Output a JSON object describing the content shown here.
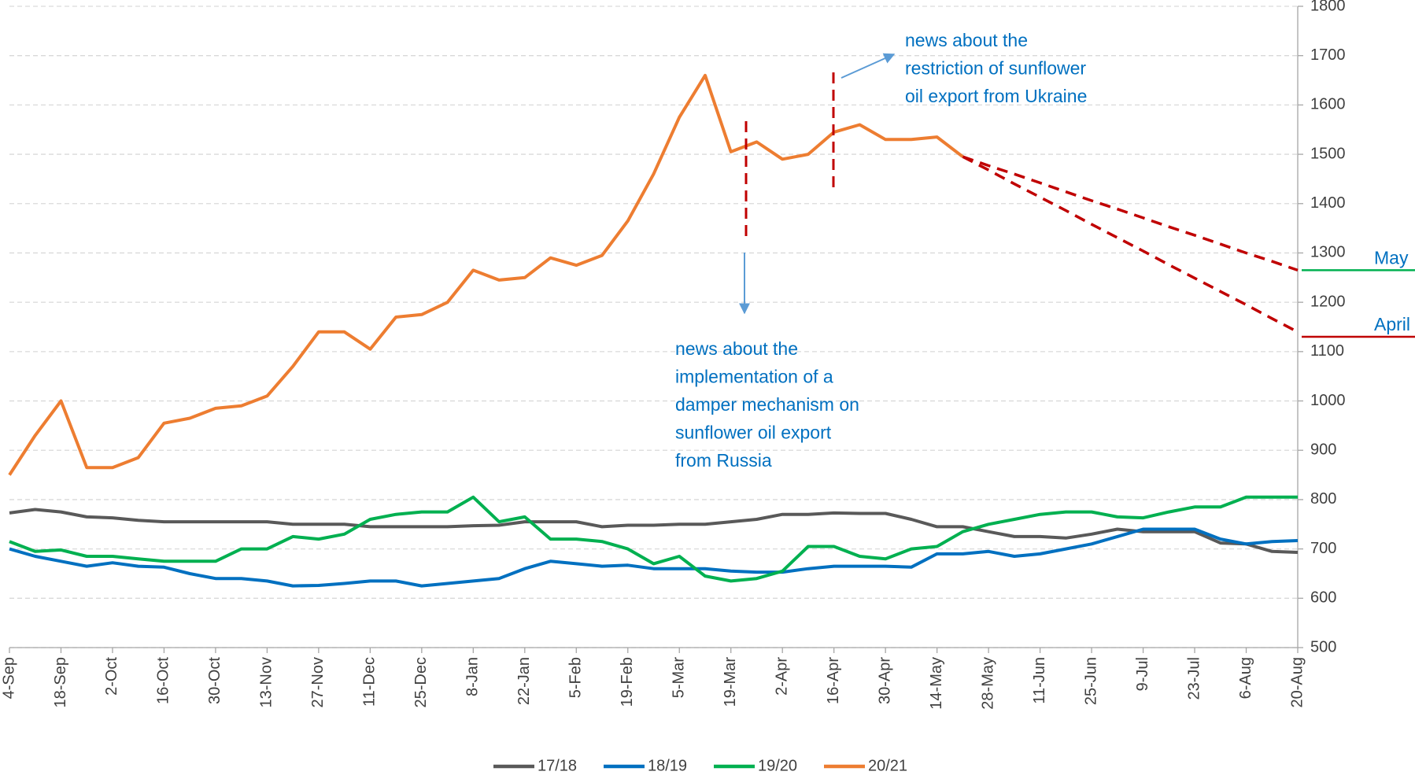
{
  "chart_data": {
    "type": "line",
    "categories": [
      "4-Sep",
      null,
      "18-Sep",
      null,
      "2-Oct",
      null,
      "16-Oct",
      null,
      "30-Oct",
      null,
      "13-Nov",
      null,
      "27-Nov",
      null,
      "11-Dec",
      null,
      "25-Dec",
      null,
      "8-Jan",
      null,
      "22-Jan",
      null,
      "5-Feb",
      null,
      "19-Feb",
      null,
      "5-Mar",
      null,
      "19-Mar",
      null,
      "2-Apr",
      null,
      "16-Apr",
      null,
      "30-Apr",
      null,
      "14-May",
      null,
      "28-May",
      null,
      "11-Jun",
      null,
      "25-Jun",
      null,
      "9-Jul",
      null,
      "23-Jul",
      null,
      "6-Aug",
      null,
      "20-Aug"
    ],
    "series": [
      {
        "name": "17/18",
        "color": "#595959",
        "values": [
          773,
          780,
          775,
          765,
          763,
          758,
          755,
          755,
          755,
          755,
          755,
          750,
          750,
          750,
          745,
          745,
          745,
          745,
          747,
          748,
          755,
          755,
          755,
          745,
          748,
          748,
          750,
          750,
          755,
          760,
          770,
          770,
          773,
          772,
          772,
          760,
          745,
          745,
          735,
          725,
          725,
          722,
          730,
          740,
          735,
          735,
          735,
          712,
          710,
          695,
          693
        ]
      },
      {
        "name": "18/19",
        "color": "#0070c0",
        "values": [
          700,
          685,
          675,
          665,
          672,
          665,
          663,
          650,
          640,
          640,
          635,
          625,
          626,
          630,
          635,
          635,
          625,
          630,
          635,
          640,
          660,
          675,
          670,
          665,
          667,
          660,
          660,
          660,
          655,
          653,
          653,
          660,
          665,
          665,
          665,
          663,
          690,
          690,
          695,
          685,
          690,
          700,
          710,
          725,
          740,
          740,
          740,
          720,
          710,
          715,
          717
        ]
      },
      {
        "name": "19/20",
        "color": "#00b050",
        "values": [
          715,
          695,
          698,
          685,
          685,
          680,
          675,
          675,
          675,
          700,
          700,
          725,
          720,
          730,
          760,
          770,
          775,
          775,
          805,
          755,
          765,
          720,
          720,
          715,
          700,
          670,
          685,
          645,
          635,
          640,
          655,
          705,
          705,
          685,
          680,
          700,
          705,
          735,
          750,
          760,
          770,
          775,
          775,
          765,
          763,
          775,
          785,
          785,
          805,
          805,
          805
        ]
      },
      {
        "name": "20/21",
        "color": "#ed7d31",
        "values": [
          850,
          930,
          1000,
          865,
          865,
          885,
          955,
          965,
          985,
          990,
          1010,
          1070,
          1140,
          1140,
          1105,
          1170,
          1175,
          1200,
          1265,
          1245,
          1250,
          1290,
          1275,
          1295,
          1365,
          1460,
          1575,
          1660,
          1505,
          1525,
          1490,
          1500,
          1545,
          1560,
          1530,
          1530,
          1535,
          1495,
          null,
          null,
          null,
          null,
          null,
          null,
          null,
          null,
          null,
          null,
          null,
          null,
          null
        ]
      }
    ],
    "projections": [
      {
        "color": "#c00000",
        "values": [
          null,
          null,
          null,
          null,
          null,
          null,
          null,
          null,
          null,
          null,
          null,
          null,
          null,
          null,
          null,
          null,
          null,
          null,
          null,
          null,
          null,
          null,
          null,
          null,
          null,
          null,
          null,
          null,
          null,
          null,
          null,
          null,
          null,
          null,
          null,
          null,
          null,
          1495,
          1477,
          1460,
          1442,
          1424,
          1406,
          1389,
          1371,
          1353,
          1336,
          1318,
          1300,
          1283,
          1265
        ]
      },
      {
        "color": "#c00000",
        "values": [
          null,
          null,
          null,
          null,
          null,
          null,
          null,
          null,
          null,
          null,
          null,
          null,
          null,
          null,
          null,
          null,
          null,
          null,
          null,
          null,
          null,
          null,
          null,
          null,
          null,
          null,
          null,
          null,
          null,
          null,
          null,
          null,
          null,
          null,
          null,
          null,
          null,
          1495,
          1468,
          1440,
          1413,
          1386,
          1358,
          1331,
          1304,
          1276,
          1249,
          1222,
          1195,
          1167,
          1140
        ]
      }
    ],
    "reference_lines": [
      {
        "label": "May",
        "value": 1265,
        "color": "#00b050"
      },
      {
        "label": "April",
        "value": 1130,
        "color": "#c00000"
      }
    ],
    "annotations": [
      {
        "lines": [
          "news about the",
          "restriction of sunflower",
          "oil export from Ukraine"
        ]
      },
      {
        "lines": [
          "news about the",
          "implementation of a",
          "damper  mechanism on",
          "sunflower oil export",
          "from Russia"
        ]
      }
    ],
    "ylim": [
      500,
      1800
    ],
    "yticks": [
      500,
      600,
      700,
      800,
      900,
      1000,
      1100,
      1200,
      1300,
      1400,
      1500,
      1600,
      1700,
      1800
    ],
    "grid": true,
    "legend": "bottom"
  }
}
